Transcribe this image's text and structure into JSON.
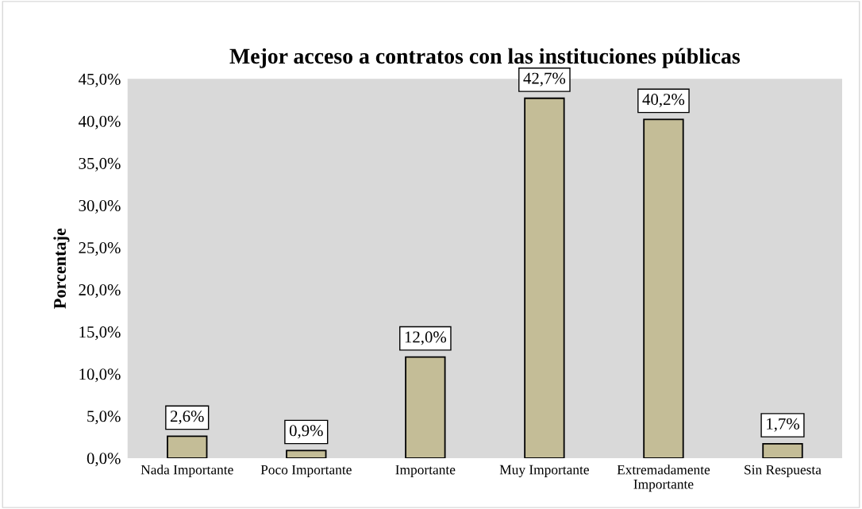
{
  "chart_data": {
    "type": "bar",
    "title": "Mejor acceso a contratos con las instituciones públicas",
    "ylabel": "Porcentaje",
    "categories": [
      "Nada Importante",
      "Poco Importante",
      "Importante",
      "Muy Importante",
      "Extremadamente\nImportante",
      "Sin Respuesta"
    ],
    "values": [
      2.6,
      0.9,
      12.0,
      42.7,
      40.2,
      1.7
    ],
    "value_labels": [
      "2,6%",
      "0,9%",
      "12,0%",
      "42,7%",
      "40,2%",
      "1,7%"
    ],
    "color": "#c4bd97",
    "ylim": [
      0,
      45
    ],
    "yticks": [
      {
        "value": 0,
        "label": "0,0%"
      },
      {
        "value": 5,
        "label": "5,0%"
      },
      {
        "value": 10,
        "label": "10,0%"
      },
      {
        "value": 15,
        "label": "15,0%"
      },
      {
        "value": 20,
        "label": "20,0%"
      },
      {
        "value": 25,
        "label": "25,0%"
      },
      {
        "value": 30,
        "label": "30,0%"
      },
      {
        "value": 35,
        "label": "35,0%"
      },
      {
        "value": 40,
        "label": "40,0%"
      },
      {
        "value": 45,
        "label": "45,0%"
      }
    ],
    "grid": false,
    "legend": false
  }
}
